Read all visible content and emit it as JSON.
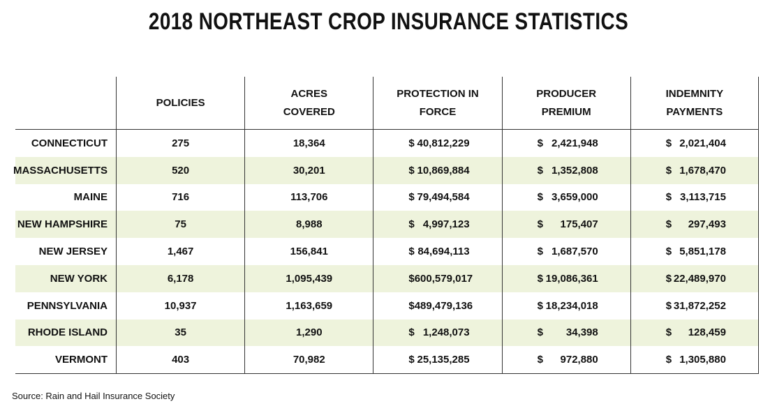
{
  "title": "2018 NORTHEAST CROP INSURANCE STATISTICS",
  "table": {
    "headers": [
      [
        "POLICIES"
      ],
      [
        "ACRES",
        "COVERED"
      ],
      [
        "PROTECTION IN",
        "FORCE"
      ],
      [
        "PRODUCER",
        "PREMIUM"
      ],
      [
        "INDEMNITY",
        "PAYMENTS"
      ]
    ],
    "rows": [
      [
        "CONNECTICUT",
        "275",
        "18,364",
        [
          "$",
          "40,812,229"
        ],
        [
          "$",
          "2,421,948"
        ],
        [
          "$",
          "2,021,404"
        ]
      ],
      [
        "MASSACHUSETTS",
        "520",
        "30,201",
        [
          "$",
          "10,869,884"
        ],
        [
          "$",
          "1,352,808"
        ],
        [
          "$",
          "1,678,470"
        ]
      ],
      [
        "MAINE",
        "716",
        "113,706",
        [
          "$",
          "79,494,584"
        ],
        [
          "$",
          "3,659,000"
        ],
        [
          "$",
          "3,113,715"
        ]
      ],
      [
        "NEW HAMPSHIRE",
        "75",
        "8,988",
        [
          "$",
          "4,997,123"
        ],
        [
          "$",
          "175,407"
        ],
        [
          "$",
          "297,493"
        ]
      ],
      [
        "NEW JERSEY",
        "1,467",
        "156,841",
        [
          "$",
          "84,694,113"
        ],
        [
          "$",
          "1,687,570"
        ],
        [
          "$",
          "5,851,178"
        ]
      ],
      [
        "NEW YORK",
        "6,178",
        "1,095,439",
        [
          "$",
          "600,579,017"
        ],
        [
          "$",
          "19,086,361"
        ],
        [
          "$",
          "22,489,970"
        ]
      ],
      [
        "PENNSYLVANIA",
        "10,937",
        "1,163,659",
        [
          "$",
          "489,479,136"
        ],
        [
          "$",
          "18,234,018"
        ],
        [
          "$",
          "31,872,252"
        ]
      ],
      [
        "RHODE ISLAND",
        "35",
        "1,290",
        [
          "$",
          "1,248,073"
        ],
        [
          "$",
          "34,398"
        ],
        [
          "$",
          "128,459"
        ]
      ],
      [
        "VERMONT",
        "403",
        "70,982",
        [
          "$",
          "25,135,285"
        ],
        [
          "$",
          "972,880"
        ],
        [
          "$",
          "1,305,880"
        ]
      ]
    ]
  },
  "source": "Source: Rain and Hail Insurance Society"
}
